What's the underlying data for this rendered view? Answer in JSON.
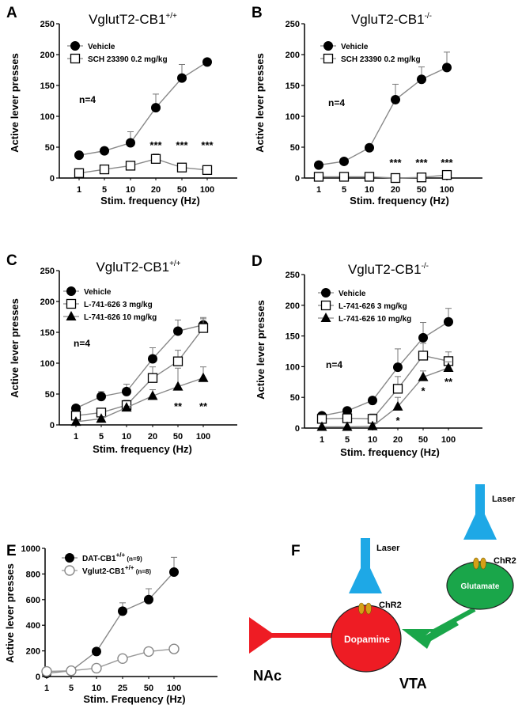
{
  "chart_data": [
    {
      "id": "A",
      "panel_label": "A",
      "title_main": "VglutT2-CB1",
      "title_sup": "+/+",
      "type": "line",
      "xlabel": "Stim. frequency (Hz)",
      "ylabel": "Active lever presses",
      "categories": [
        "1",
        "5",
        "10",
        "20",
        "50",
        "100"
      ],
      "ylim": [
        0,
        250
      ],
      "yticks": [
        0,
        50,
        100,
        150,
        200,
        250
      ],
      "annotation": "n=4",
      "series": [
        {
          "name": "Vehicle",
          "marker": "circle",
          "values": [
            37,
            44,
            57,
            114,
            162,
            188
          ],
          "err": [
            5,
            5,
            18,
            22,
            22,
            0
          ]
        },
        {
          "name": "SCH 23390 0.2 mg/kg",
          "marker": "square",
          "values": [
            8,
            14,
            20,
            31,
            17,
            13
          ],
          "err": [
            0,
            0,
            5,
            8,
            5,
            0
          ]
        }
      ],
      "significance": [
        {
          "index": 3,
          "label": "***"
        },
        {
          "index": 4,
          "label": "***"
        },
        {
          "index": 5,
          "label": "***"
        }
      ]
    },
    {
      "id": "B",
      "panel_label": "B",
      "title_main": "VgluT2-CB1",
      "title_sup": "-/-",
      "type": "line",
      "xlabel": "Stim. frequency (Hz)",
      "ylabel": "Active lever presses",
      "categories": [
        "1",
        "5",
        "10",
        "20",
        "50",
        "100"
      ],
      "ylim": [
        0,
        250
      ],
      "yticks": [
        0,
        50,
        100,
        150,
        200,
        250
      ],
      "annotation": "n=4",
      "series": [
        {
          "name": "Vehicle",
          "marker": "circle",
          "values": [
            21,
            27,
            49,
            127,
            160,
            179
          ],
          "err": [
            0,
            0,
            0,
            25,
            20,
            25
          ]
        },
        {
          "name": "SCH 23390 0.2 mg/kg",
          "marker": "square",
          "values": [
            2,
            2,
            2,
            0,
            1,
            5
          ],
          "err": [
            0,
            0,
            0,
            0,
            0,
            4
          ]
        }
      ],
      "significance": [
        {
          "index": 3,
          "label": "***"
        },
        {
          "index": 4,
          "label": "***"
        },
        {
          "index": 5,
          "label": "***"
        }
      ]
    },
    {
      "id": "C",
      "panel_label": "C",
      "title_main": "VgluT2-CB1",
      "title_sup": "+/+",
      "type": "line",
      "xlabel": "Stim. frequency (Hz)",
      "ylabel": "Active lever presses",
      "categories": [
        "1",
        "5",
        "10",
        "20",
        "50",
        "100"
      ],
      "ylim": [
        0,
        250
      ],
      "yticks": [
        0,
        50,
        100,
        150,
        200,
        250
      ],
      "annotation": "n=4",
      "series": [
        {
          "name": "Vehicle",
          "marker": "circle",
          "values": [
            27,
            46,
            54,
            107,
            152,
            162
          ],
          "err": [
            0,
            8,
            12,
            18,
            18,
            12
          ]
        },
        {
          "name": "L-741-626 3 mg/kg",
          "marker": "square",
          "values": [
            15,
            20,
            32,
            76,
            103,
            157
          ],
          "err": [
            5,
            5,
            8,
            18,
            18,
            15
          ]
        },
        {
          "name": "L-741-626 10 mg/kg",
          "marker": "triangle",
          "values": [
            5,
            10,
            28,
            47,
            62,
            76
          ],
          "err": [
            0,
            0,
            0,
            10,
            30,
            18
          ]
        }
      ],
      "significance": [
        {
          "index": 4,
          "label": "**"
        },
        {
          "index": 5,
          "label": "**"
        }
      ]
    },
    {
      "id": "D",
      "panel_label": "D",
      "title_main": "VgluT2-CB1",
      "title_sup": "-/-",
      "type": "line",
      "xlabel": "Stim. frequency (Hz)",
      "ylabel": "Active lever presses",
      "categories": [
        "1",
        "5",
        "10",
        "20",
        "50",
        "100"
      ],
      "ylim": [
        0,
        250
      ],
      "yticks": [
        0,
        50,
        100,
        150,
        200,
        250
      ],
      "annotation": "n=4",
      "series": [
        {
          "name": "Vehicle",
          "marker": "circle",
          "values": [
            20,
            28,
            45,
            99,
            147,
            173
          ],
          "err": [
            0,
            0,
            0,
            30,
            25,
            22
          ]
        },
        {
          "name": "L-741-626 3 mg/kg",
          "marker": "square",
          "values": [
            15,
            16,
            15,
            64,
            118,
            109
          ],
          "err": [
            5,
            5,
            8,
            20,
            20,
            15
          ]
        },
        {
          "name": "L-741-626 10 mg/kg",
          "marker": "triangle",
          "values": [
            2,
            2,
            3,
            35,
            83,
            98
          ],
          "err": [
            0,
            0,
            0,
            15,
            10,
            10
          ]
        }
      ],
      "significance": [
        {
          "index": 3,
          "label": "*"
        },
        {
          "index": 4,
          "label": "*"
        },
        {
          "index": 5,
          "label": "**"
        }
      ]
    },
    {
      "id": "E",
      "panel_label": "E",
      "type": "line",
      "xlabel": "Stim. Frequency (Hz)",
      "ylabel": "Active lever presses",
      "categories": [
        "1",
        "5",
        "10",
        "25",
        "50",
        "100"
      ],
      "ylim": [
        0,
        1000
      ],
      "yticks": [
        0,
        200,
        400,
        600,
        800,
        1000
      ],
      "series": [
        {
          "name_main": "DAT-CB1",
          "name_sup": "+/+",
          "name_tail": " (n=9)",
          "marker": "circle",
          "values": [
            25,
            45,
            195,
            510,
            600,
            815
          ],
          "err": [
            0,
            0,
            0,
            65,
            85,
            115
          ]
        },
        {
          "name_main": "Vglut2-CB1",
          "name_sup": "+/+",
          "name_tail": " (n=8)",
          "marker": "open-circle",
          "values": [
            40,
            45,
            65,
            140,
            195,
            215
          ],
          "err": [
            0,
            0,
            0,
            0,
            0,
            0
          ]
        }
      ]
    }
  ],
  "diagram": {
    "panel_label": "F",
    "laser_label_1": "Laser",
    "laser_label_2": "Laser",
    "chr2_label_1": "ChR2",
    "chr2_label_2": "ChR2",
    "dopamine_label": "Dopamine",
    "glutamate_label": "Glutamate",
    "nac_label": "NAc",
    "vta_label": "VTA",
    "colors": {
      "laser": "#1ea8e6",
      "dopamine": "#ee1c24",
      "glutamate": "#1aa64a",
      "channel": "#d4a017"
    }
  }
}
